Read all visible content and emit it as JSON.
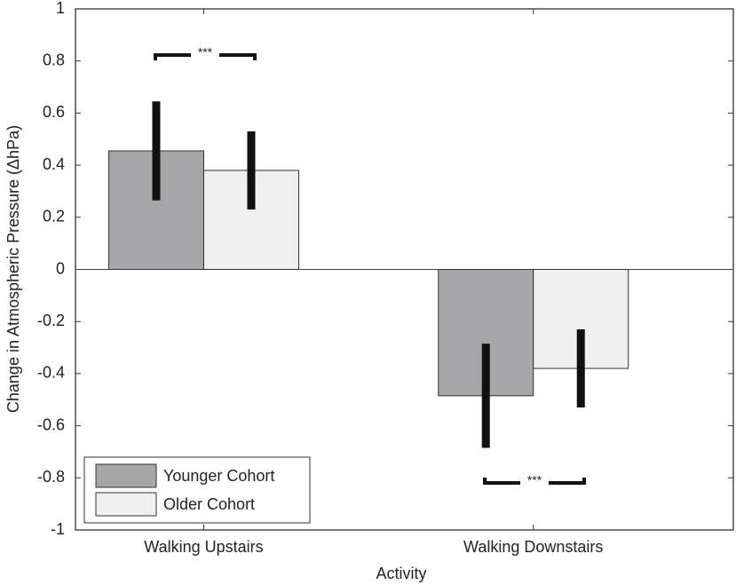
{
  "chart_data": {
    "type": "bar",
    "x_label": "Activity",
    "y_label": "Change in Atmospheric Pressure (ΔhPa)",
    "categories": [
      "Walking Upstairs",
      "Walking Downstairs"
    ],
    "series": [
      {
        "name": "Younger Cohort",
        "color": "#a6a6a8",
        "values": [
          0.455,
          -0.485
        ],
        "errors": [
          0.19,
          0.2
        ]
      },
      {
        "name": "Older Cohort",
        "color": "#efefef",
        "values": [
          0.38,
          -0.38
        ],
        "errors": [
          0.15,
          0.15
        ]
      }
    ],
    "ylim": [
      -1,
      1
    ],
    "yticks": [
      -1,
      -0.8,
      -0.6,
      -0.4,
      -0.2,
      0,
      0.2,
      0.4,
      0.6,
      0.8,
      1
    ],
    "legend": "lower left",
    "annotations": [
      {
        "text": "***"
      },
      {
        "text": "***"
      }
    ]
  }
}
